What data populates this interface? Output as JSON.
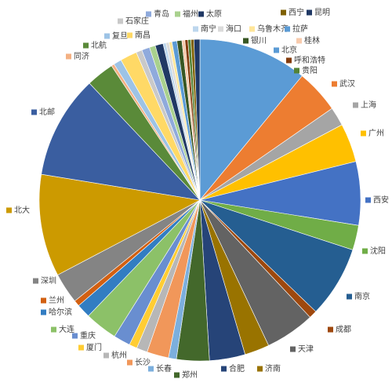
{
  "chart_data": {
    "type": "pie",
    "categories": [
      "北京",
      "武汉",
      "上海",
      "广州",
      "西安",
      "沈阳",
      "南京",
      "成都",
      "天津",
      "济南",
      "合肥",
      "郑州",
      "长春",
      "长沙",
      "杭州",
      "厦门",
      "重庆",
      "大连",
      "哈尔滨",
      "兰州",
      "深圳",
      "北大",
      "北邮",
      "北航",
      "同济",
      "复旦",
      "南昌",
      "石家庄",
      "青岛",
      "福州",
      "太原",
      "南宁",
      "海口",
      "乌鲁木齐",
      "拉萨",
      "银川",
      "桂林",
      "呼和浩特",
      "贵阳",
      "西宁",
      "昆明"
    ],
    "values": [
      11.0,
      4.4,
      1.9,
      3.9,
      6.4,
      2.5,
      7.2,
      0.8,
      5.0,
      2.5,
      3.6,
      3.3,
      0.8,
      2.2,
      1.1,
      0.8,
      1.7,
      3.3,
      1.4,
      0.6,
      3.1,
      10.3,
      10.4,
      2.8,
      0.3,
      0.8,
      1.7,
      0.6,
      0.8,
      0.6,
      0.8,
      0.3,
      0.3,
      0.3,
      0.5,
      0.5,
      0.3,
      0.3,
      0.3,
      0.3,
      0.6
    ],
    "colors": [
      "#5b9bd5",
      "#ed7d31",
      "#a5a5a5",
      "#ffc000",
      "#4472c4",
      "#70ad47",
      "#255e91",
      "#9e480e",
      "#636363",
      "#997300",
      "#264478",
      "#43682b",
      "#7cafdd",
      "#f1975a",
      "#b7b7b7",
      "#ffcd33",
      "#698ed0",
      "#8cc168",
      "#327dc2",
      "#d26012",
      "#848484",
      "#cc9a00",
      "#3a5ea0",
      "#5a8a39",
      "#f4b183",
      "#9dc3e6",
      "#ffd966",
      "#c9c9c9",
      "#8faadc",
      "#a9d18e",
      "#203864",
      "#bdd7ee",
      "#dbdbdb",
      "#ffe699",
      "#5b9bd5",
      "#385723",
      "#f8cbad",
      "#843c0c",
      "#548235",
      "#7f6000",
      "#1f3864"
    ]
  }
}
